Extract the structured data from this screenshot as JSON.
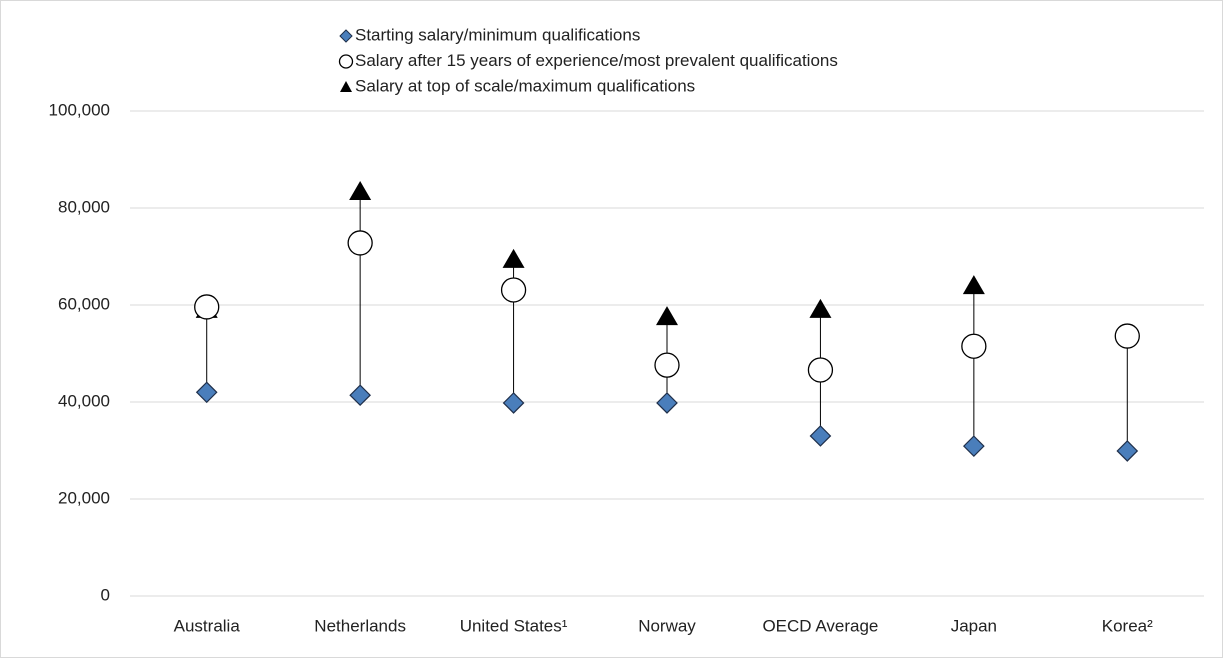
{
  "chart_data": {
    "type": "dot-range",
    "categories": [
      "Australia",
      "Netherlands",
      "United States¹",
      "Norway",
      "OECD Average",
      "Japan",
      "Korea²"
    ],
    "series": [
      {
        "name": "Starting salary/minimum qualifications",
        "marker": "diamond",
        "color": "#4a7ebb",
        "values": [
          42000,
          41400,
          39800,
          39800,
          33000,
          30900,
          29900
        ]
      },
      {
        "name": "Salary after 15 years of experience/most prevalent qualifications",
        "marker": "circle",
        "color": "#ffffff",
        "values": [
          59600,
          72800,
          63100,
          47600,
          46600,
          51500,
          53600
        ]
      },
      {
        "name": "Salary at top of scale/maximum qualifications",
        "marker": "triangle",
        "color": "#000000",
        "values": [
          59000,
          83300,
          69300,
          57500,
          59000,
          63900,
          null
        ]
      }
    ],
    "ylim": [
      0,
      100000
    ],
    "yticks": [
      0,
      {
        "value": 20000,
        "label": "20,000"
      },
      {
        "value": 40000,
        "label": "40,000"
      },
      {
        "value": 60000,
        "label": "60,000"
      },
      {
        "value": 80000,
        "label": "80,000"
      },
      {
        "value": 100000,
        "label": "100,000"
      }
    ],
    "grid": true,
    "legend": "top"
  }
}
